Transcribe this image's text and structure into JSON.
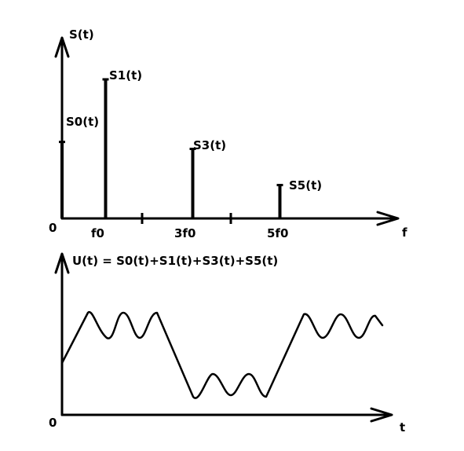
{
  "spectrum": {
    "y_axis_label": "S(t)",
    "x_axis_label": "f",
    "origin_label": "0",
    "x_tick_labels": [
      "f0",
      "3f0",
      "5f0"
    ],
    "components": [
      {
        "name": "S0(t)",
        "frequency_multiple": 0,
        "relative_amplitude": 0.55
      },
      {
        "name": "S1(t)",
        "frequency_multiple": 1,
        "relative_amplitude": 1.0
      },
      {
        "name": "S3(t)",
        "frequency_multiple": 3,
        "relative_amplitude": 0.5
      },
      {
        "name": "S5(t)",
        "frequency_multiple": 5,
        "relative_amplitude": 0.24
      }
    ]
  },
  "signal": {
    "equation": "U(t) = S0(t)+S1(t)+S3(t)+S5(t)",
    "x_axis_label": "t",
    "origin_label": "0"
  }
}
